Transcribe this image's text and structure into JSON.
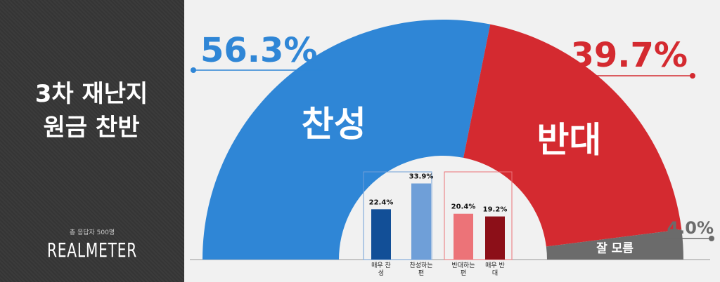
{
  "chart_data": [
    {
      "type": "pie",
      "title": "3차 재난지원금 찬반",
      "note": "총 응답자 500명",
      "source": "REALMETER",
      "categories": [
        "찬성",
        "반대",
        "잘 모름"
      ],
      "values": [
        56.3,
        39.7,
        4.0
      ],
      "value_labels": [
        "56.3%",
        "39.7%",
        "4.0%"
      ],
      "colors": [
        "#2f86d6",
        "#d42a30",
        "#6b6b6b"
      ]
    },
    {
      "type": "bar",
      "categories": [
        "매우 찬성",
        "찬성하는 편",
        "반대하는 편",
        "매우 반대"
      ],
      "values": [
        22.4,
        33.9,
        20.4,
        19.2
      ],
      "value_labels": [
        "22.4%",
        "33.9%",
        "20.4%",
        "19.2%"
      ],
      "colors": [
        "#124f97",
        "#6f9fd8",
        "#ec7378",
        "#8c0f18"
      ]
    }
  ]
}
